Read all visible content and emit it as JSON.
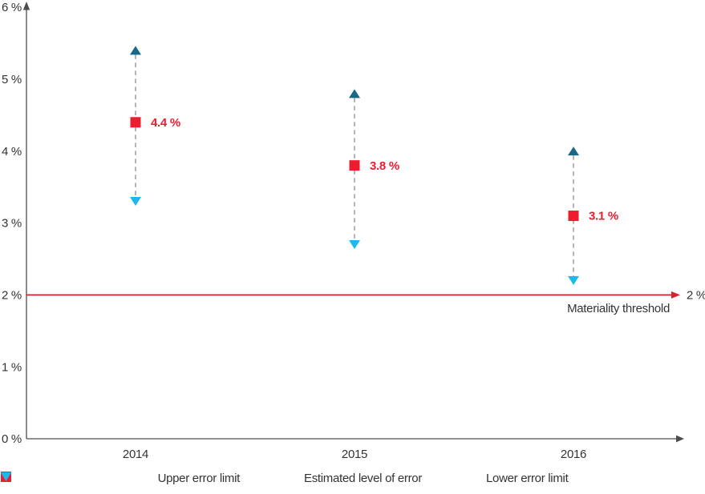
{
  "chart_data": {
    "type": "scatter",
    "title": "",
    "categories": [
      "2014",
      "2015",
      "2016"
    ],
    "series": [
      {
        "name": "Upper error limit",
        "marker": "triangle-up",
        "color": "#176985",
        "values": [
          5.4,
          4.8,
          4.0
        ]
      },
      {
        "name": "Estimated level of error",
        "marker": "square",
        "color": "#ED1C2E",
        "values": [
          4.4,
          3.8,
          3.1
        ],
        "point_labels": [
          "4.4 %",
          "3.8 %",
          "3.1 %"
        ]
      },
      {
        "name": "Lower error limit",
        "marker": "triangle-down",
        "color": "#1FB8EA",
        "values": [
          3.3,
          2.7,
          2.2
        ]
      }
    ],
    "connector": {
      "style": "dashed",
      "color": "#9B9B9B"
    },
    "ylim": [
      0,
      6
    ],
    "yticks": {
      "values": [
        0,
        1,
        2,
        3,
        4,
        5,
        6
      ],
      "labels": [
        "0 %",
        "1 %",
        "2 %",
        "3 %",
        "4 %",
        "5 %",
        "6 %"
      ]
    },
    "threshold": {
      "value": 2,
      "right_label": "2 %",
      "annotation": "Materiality threshold",
      "color": "#D6232E"
    },
    "xlabel": "",
    "ylabel": "",
    "grid": false,
    "legend_position": "bottom"
  }
}
